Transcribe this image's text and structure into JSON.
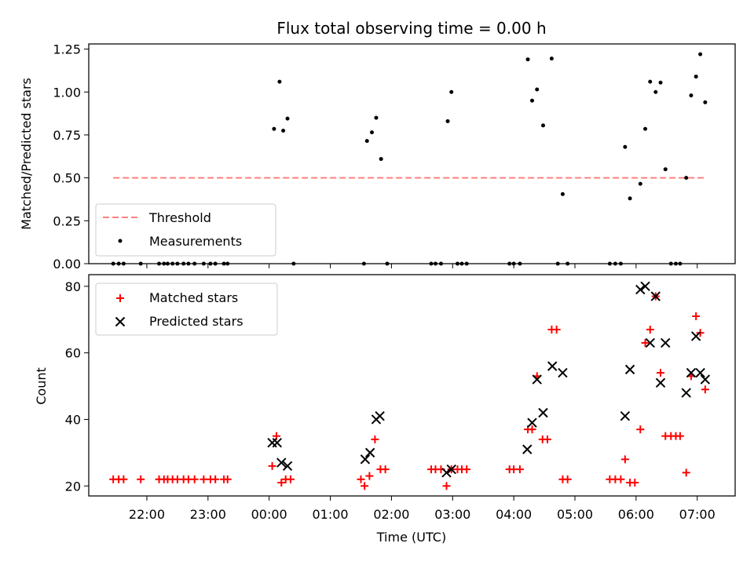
{
  "title": "Flux total observing time = 0.00 h",
  "colors": {
    "threshold": "#ff8080",
    "measurements": "#000000",
    "matched": "#ff0000",
    "predicted": "#000000"
  },
  "chart_data": [
    {
      "type": "scatter",
      "ylabel": "Matched/Predicted stars",
      "ylim": [
        0,
        1.28
      ],
      "yticks": [
        "0.00",
        "0.25",
        "0.50",
        "0.75",
        "1.00",
        "1.25"
      ],
      "xlim": [
        -2.95,
        7.62
      ],
      "grid": false,
      "legend_position": "lower-left",
      "threshold": {
        "name": "Threshold",
        "value": 0.5,
        "x_range": [
          -2.55,
          7.15
        ]
      },
      "series": [
        {
          "name": "Measurements",
          "points": [
            [
              -2.55,
              0
            ],
            [
              -2.46,
              0
            ],
            [
              -2.38,
              0
            ],
            [
              -2.1,
              0
            ],
            [
              -1.8,
              0
            ],
            [
              -1.72,
              0
            ],
            [
              -1.66,
              0
            ],
            [
              -1.58,
              0
            ],
            [
              -1.5,
              0
            ],
            [
              -1.4,
              0
            ],
            [
              -1.32,
              0
            ],
            [
              -1.22,
              0
            ],
            [
              -1.07,
              0
            ],
            [
              -0.96,
              0
            ],
            [
              -0.88,
              0
            ],
            [
              -0.74,
              0
            ],
            [
              -0.68,
              0
            ],
            [
              0.08,
              0.785
            ],
            [
              0.17,
              1.06
            ],
            [
              0.23,
              0.775
            ],
            [
              0.3,
              0.845
            ],
            [
              0.4,
              0
            ],
            [
              1.55,
              0
            ],
            [
              1.6,
              0.715
            ],
            [
              1.68,
              0.765
            ],
            [
              1.75,
              0.85
            ],
            [
              1.83,
              0.61
            ],
            [
              1.93,
              0
            ],
            [
              2.65,
              0
            ],
            [
              2.72,
              0
            ],
            [
              2.81,
              0
            ],
            [
              2.92,
              0.83
            ],
            [
              2.98,
              1.0
            ],
            [
              3.08,
              0
            ],
            [
              3.15,
              0
            ],
            [
              3.23,
              0
            ],
            [
              3.93,
              0
            ],
            [
              4.0,
              0
            ],
            [
              4.1,
              0
            ],
            [
              4.23,
              1.19
            ],
            [
              4.3,
              0.95
            ],
            [
              4.38,
              1.015
            ],
            [
              4.48,
              0.805
            ],
            [
              4.62,
              1.195
            ],
            [
              4.72,
              0
            ],
            [
              4.8,
              0.405
            ],
            [
              4.88,
              0
            ],
            [
              5.57,
              0
            ],
            [
              5.66,
              0
            ],
            [
              5.75,
              0
            ],
            [
              5.82,
              0.68
            ],
            [
              5.9,
              0.38
            ],
            [
              6.07,
              0.465
            ],
            [
              6.15,
              0.785
            ],
            [
              6.23,
              1.06
            ],
            [
              6.32,
              1.0
            ],
            [
              6.4,
              1.055
            ],
            [
              6.48,
              0.55
            ],
            [
              6.57,
              0
            ],
            [
              6.65,
              0
            ],
            [
              6.72,
              0
            ],
            [
              6.82,
              0.5
            ],
            [
              6.9,
              0.98
            ],
            [
              6.98,
              1.09
            ],
            [
              7.05,
              1.22
            ],
            [
              7.13,
              0.94
            ]
          ]
        }
      ]
    },
    {
      "type": "scatter",
      "xlabel": "Time (UTC)",
      "ylabel": "Count",
      "ylim": [
        17,
        83.5
      ],
      "yticks": [
        "20",
        "40",
        "60",
        "80"
      ],
      "xlim": [
        -2.95,
        7.62
      ],
      "xticks": [
        "22:00",
        "23:00",
        "00:00",
        "01:00",
        "02:00",
        "03:00",
        "04:00",
        "05:00",
        "06:00",
        "07:00"
      ],
      "grid": false,
      "legend_position": "upper-left",
      "series": [
        {
          "name": "Matched stars",
          "points": [
            [
              -2.55,
              22
            ],
            [
              -2.46,
              22
            ],
            [
              -2.38,
              22
            ],
            [
              -2.1,
              22
            ],
            [
              -1.8,
              22
            ],
            [
              -1.72,
              22
            ],
            [
              -1.66,
              22
            ],
            [
              -1.58,
              22
            ],
            [
              -1.5,
              22
            ],
            [
              -1.4,
              22
            ],
            [
              -1.32,
              22
            ],
            [
              -1.22,
              22
            ],
            [
              -1.07,
              22
            ],
            [
              -0.96,
              22
            ],
            [
              -0.88,
              22
            ],
            [
              -0.74,
              22
            ],
            [
              -0.68,
              22
            ],
            [
              0.05,
              26
            ],
            [
              0.12,
              35
            ],
            [
              0.2,
              21
            ],
            [
              0.27,
              22
            ],
            [
              0.35,
              22
            ],
            [
              1.5,
              22
            ],
            [
              1.56,
              20
            ],
            [
              1.64,
              23
            ],
            [
              1.73,
              34
            ],
            [
              1.82,
              25
            ],
            [
              1.9,
              25
            ],
            [
              2.65,
              25
            ],
            [
              2.72,
              25
            ],
            [
              2.81,
              25
            ],
            [
              2.9,
              20
            ],
            [
              2.98,
              25
            ],
            [
              3.08,
              25
            ],
            [
              3.15,
              25
            ],
            [
              3.23,
              25
            ],
            [
              3.93,
              25
            ],
            [
              4.0,
              25
            ],
            [
              4.1,
              25
            ],
            [
              4.23,
              37
            ],
            [
              4.3,
              37
            ],
            [
              4.38,
              53
            ],
            [
              4.47,
              34
            ],
            [
              4.55,
              34
            ],
            [
              4.62,
              67
            ],
            [
              4.7,
              67
            ],
            [
              4.8,
              22
            ],
            [
              4.88,
              22
            ],
            [
              5.57,
              22
            ],
            [
              5.66,
              22
            ],
            [
              5.75,
              22
            ],
            [
              5.82,
              28
            ],
            [
              5.9,
              21
            ],
            [
              5.98,
              21
            ],
            [
              6.07,
              37
            ],
            [
              6.15,
              63
            ],
            [
              6.23,
              67
            ],
            [
              6.32,
              77
            ],
            [
              6.4,
              54
            ],
            [
              6.48,
              35
            ],
            [
              6.57,
              35
            ],
            [
              6.65,
              35
            ],
            [
              6.72,
              35
            ],
            [
              6.82,
              24
            ],
            [
              6.9,
              53
            ],
            [
              6.98,
              71
            ],
            [
              7.05,
              66
            ],
            [
              7.13,
              49
            ]
          ]
        },
        {
          "name": "Predicted stars",
          "points": [
            [
              0.05,
              33
            ],
            [
              0.13,
              33
            ],
            [
              0.2,
              27
            ],
            [
              0.3,
              26
            ],
            [
              1.57,
              28
            ],
            [
              1.65,
              30
            ],
            [
              1.75,
              40
            ],
            [
              1.81,
              41
            ],
            [
              2.9,
              24
            ],
            [
              2.98,
              25
            ],
            [
              4.22,
              31
            ],
            [
              4.3,
              39
            ],
            [
              4.38,
              52
            ],
            [
              4.48,
              42
            ],
            [
              4.63,
              56
            ],
            [
              4.8,
              54
            ],
            [
              5.82,
              41
            ],
            [
              5.9,
              55
            ],
            [
              6.07,
              79
            ],
            [
              6.15,
              80
            ],
            [
              6.23,
              63
            ],
            [
              6.32,
              77
            ],
            [
              6.4,
              51
            ],
            [
              6.48,
              63
            ],
            [
              6.82,
              48
            ],
            [
              6.9,
              54
            ],
            [
              6.98,
              65
            ],
            [
              7.05,
              54
            ],
            [
              7.13,
              52
            ]
          ]
        }
      ]
    }
  ]
}
